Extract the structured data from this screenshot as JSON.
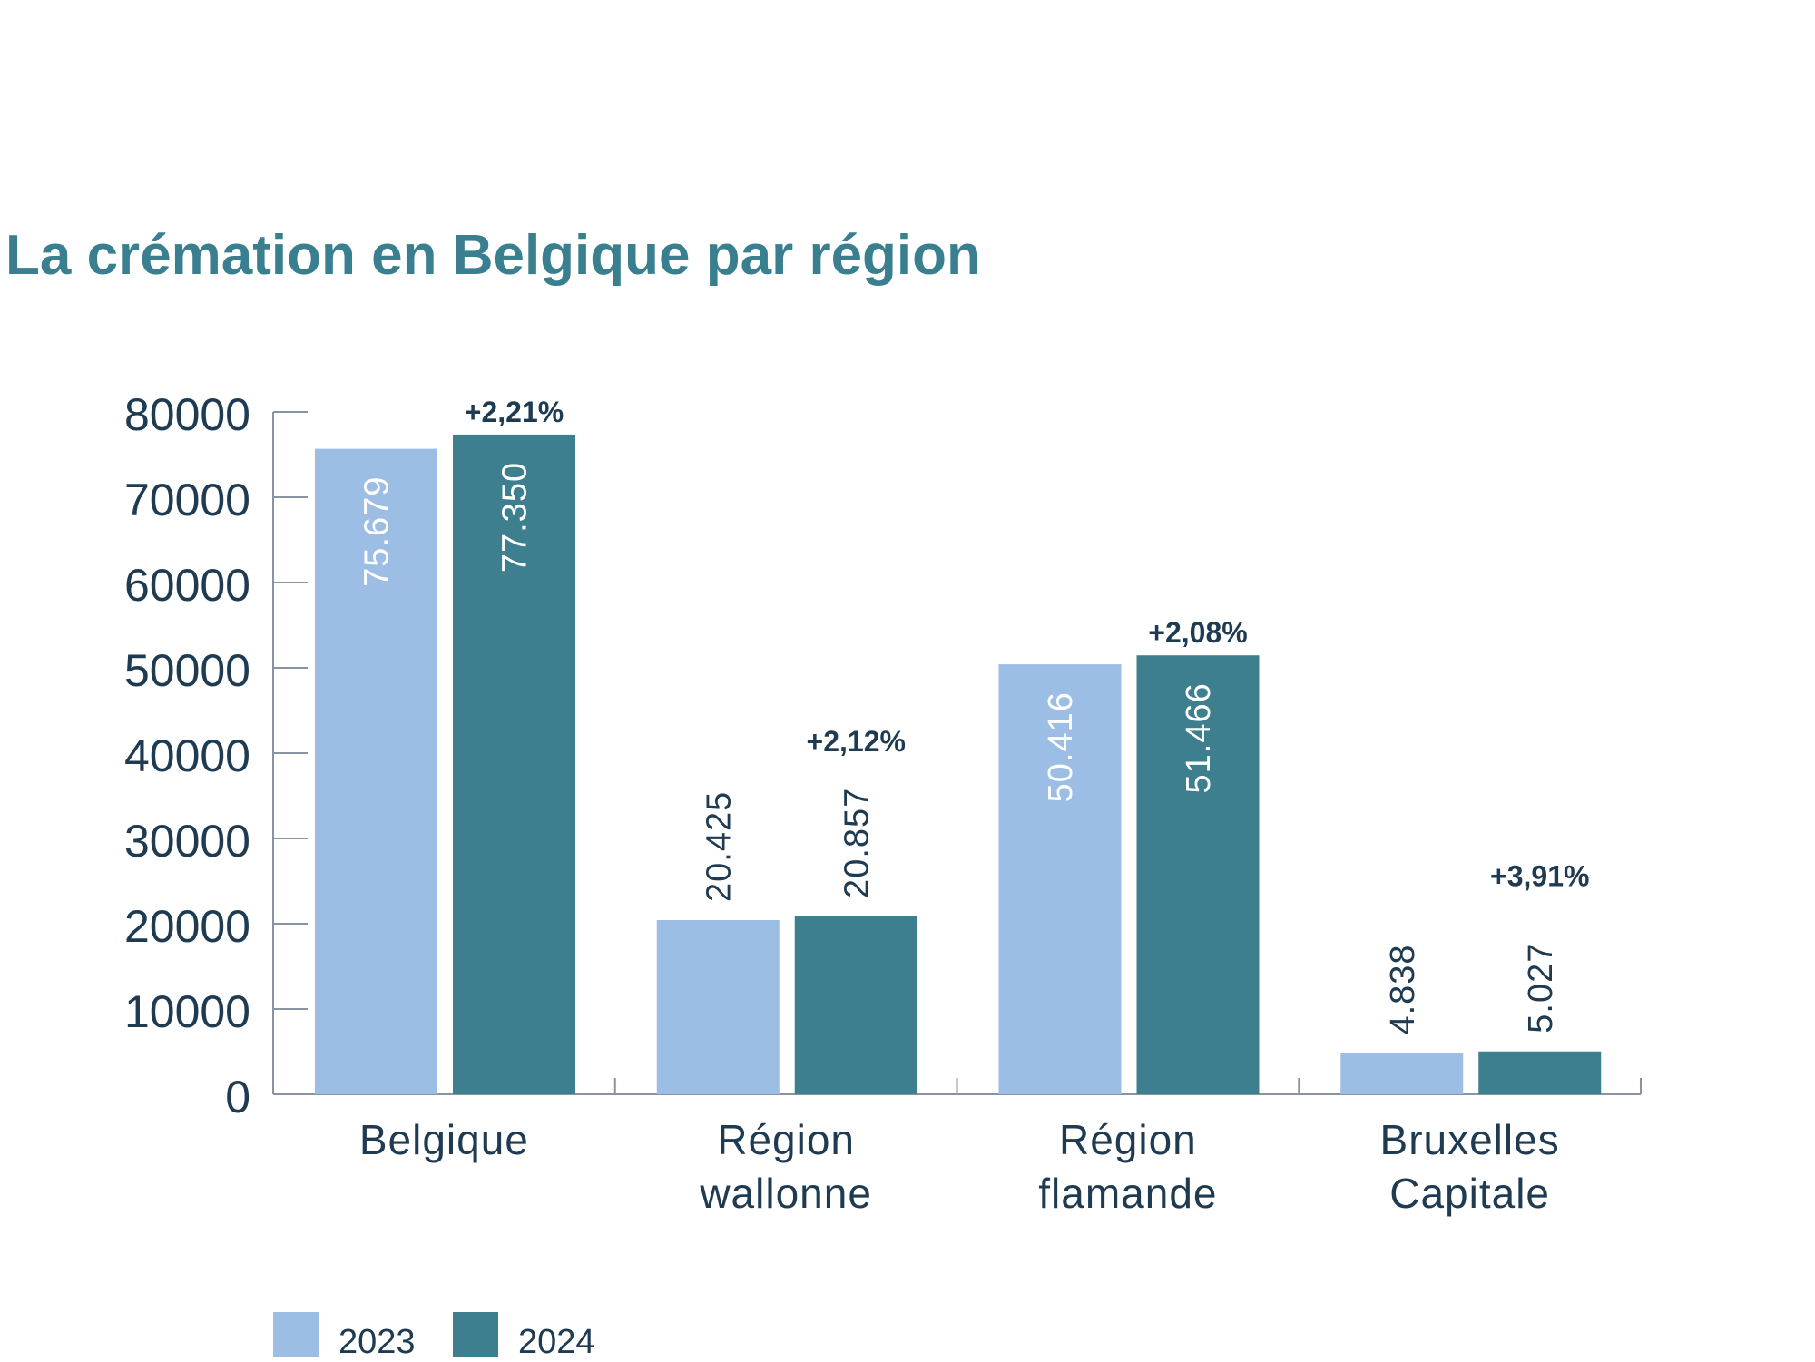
{
  "chart_data": {
    "type": "bar",
    "title": "La crémation en Belgique par région",
    "xlabel": "",
    "ylabel": "",
    "ylim": [
      0,
      80000
    ],
    "yticks": [
      "0",
      "10000",
      "20000",
      "30000",
      "40000",
      "50000",
      "60000",
      "70000",
      "80000"
    ],
    "grid": false,
    "legend_position": "bottom-left",
    "categories": [
      [
        "Belgique"
      ],
      [
        "Région",
        "wallonne"
      ],
      [
        "Région",
        "flamande"
      ],
      [
        "Bruxelles",
        "Capitale"
      ]
    ],
    "series": [
      {
        "name": "2023",
        "color": "#9dbee4",
        "values": [
          75679,
          20425,
          50416,
          4838
        ],
        "labels": [
          "75.679",
          "20.425",
          "50.416",
          "4.838"
        ]
      },
      {
        "name": "2024",
        "color": "#3d7f8f",
        "values": [
          77350,
          20857,
          51466,
          5027
        ],
        "labels": [
          "77.350",
          "20.857",
          "51.466",
          "5.027"
        ]
      }
    ],
    "changes": [
      "+2,21%",
      "+2,12%",
      "+2,08%",
      "+3,91%"
    ],
    "colors": {
      "title": "#3a7f8f",
      "text": "#1f3b52",
      "axis": "#8a93a6"
    }
  }
}
